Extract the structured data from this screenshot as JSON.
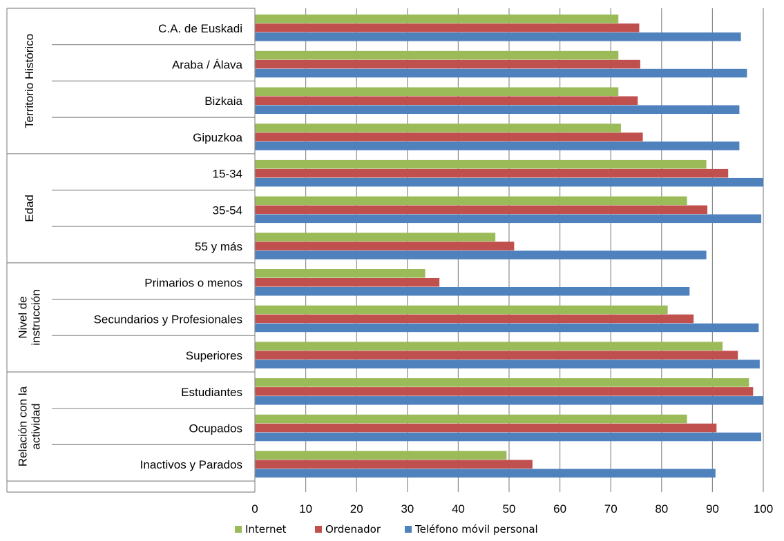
{
  "chart_data": {
    "type": "bar",
    "orientation": "horizontal",
    "title": "",
    "xlabel": "",
    "ylabel": "",
    "xlim": [
      0,
      100
    ],
    "x_ticks": [
      0,
      10,
      20,
      30,
      40,
      50,
      60,
      70,
      80,
      90,
      100
    ],
    "grid": true,
    "legend_position": "bottom",
    "categories": [
      "C.A. de Euskadi",
      "Araba / Álava",
      "Bizkaia",
      "Gipuzkoa",
      "15-34",
      "35-54",
      "55 y más",
      "Primarios o menos",
      "Secundarios y Profesionales",
      "Superiores",
      "Estudiantes",
      "Ocupados",
      "Inactivos y Parados"
    ],
    "groups": [
      {
        "label": "Territorio Histórico",
        "lines": [
          "Territorio Histórico"
        ],
        "start": 0,
        "count": 4
      },
      {
        "label": "Edad",
        "lines": [
          "Edad"
        ],
        "start": 4,
        "count": 3
      },
      {
        "label": "Nivel de instrucción",
        "lines": [
          "Nivel de",
          "instrucción"
        ],
        "start": 7,
        "count": 3
      },
      {
        "label": "Relación con la actividad",
        "lines": [
          "Relación con la",
          "actividad"
        ],
        "start": 10,
        "count": 3
      }
    ],
    "series": [
      {
        "name": "Internet",
        "color": "#9bbb59",
        "values": [
          71.5,
          71.5,
          71.5,
          72.0,
          88.8,
          85.0,
          47.3,
          33.5,
          81.2,
          92.0,
          97.2,
          85.0,
          49.5
        ]
      },
      {
        "name": "Ordenador",
        "color": "#c0504d",
        "values": [
          75.6,
          75.8,
          75.3,
          76.3,
          93.1,
          89.0,
          51.0,
          36.3,
          86.3,
          95.0,
          98.0,
          90.8,
          54.6
        ]
      },
      {
        "name": "Teléfono móvil personal",
        "color": "#4f81bd",
        "values": [
          95.6,
          96.8,
          95.3,
          95.3,
          100.0,
          99.6,
          88.8,
          85.5,
          99.1,
          99.3,
          100.0,
          99.6,
          90.6
        ]
      }
    ]
  }
}
